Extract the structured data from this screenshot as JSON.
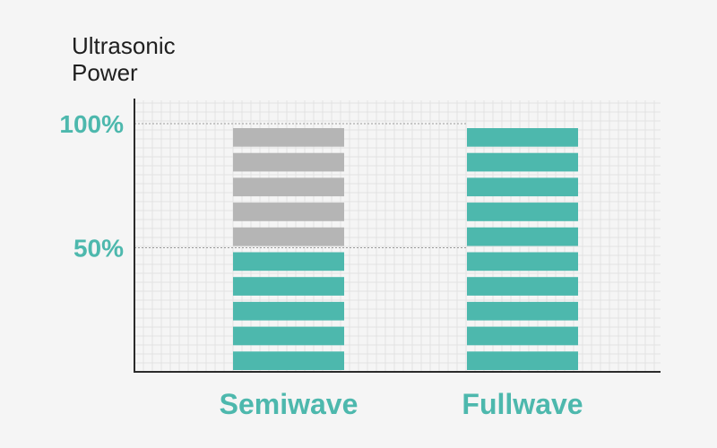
{
  "chart_data": {
    "type": "bar",
    "ylabel": "Ultrasonic\nPower",
    "xlabel": "",
    "title": "",
    "categories": [
      "Semiwave",
      "Fullwave"
    ],
    "yticks": [
      "100%",
      "50%"
    ],
    "ytick_values": [
      100,
      50
    ],
    "ylim": [
      0,
      100
    ],
    "segments_per_bar": 10,
    "series": [
      {
        "name": "",
        "values": [
          50,
          100
        ]
      }
    ],
    "grid": true,
    "colors": {
      "active": "#4db8ad",
      "inactive": "#b5b5b5",
      "tick_text": "#4db8ad",
      "axis": "#2b2b2b",
      "grid": "#e2e2e2"
    }
  }
}
